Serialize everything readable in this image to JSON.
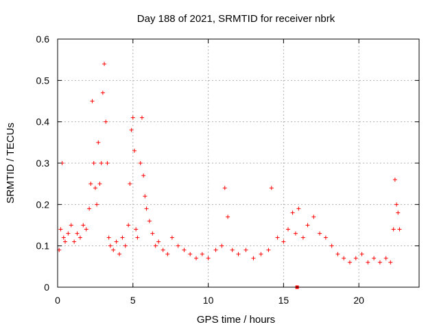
{
  "chart_data": {
    "type": "scatter",
    "title": "Day 188 of 2021, SRMTID for receiver nbrk",
    "xlabel": "GPS time / hours",
    "ylabel": "SRMTID / TECUs",
    "xlim": [
      0,
      24
    ],
    "ylim": [
      0,
      0.6
    ],
    "xticks": [
      0,
      5,
      10,
      15,
      20
    ],
    "yticks": [
      0,
      0.1,
      0.2,
      0.3,
      0.4,
      0.5,
      0.6
    ],
    "xtick_labels": [
      "0",
      "5",
      "10",
      "15",
      "20"
    ],
    "ytick_labels": [
      "0",
      "0.1",
      "0.2",
      "0.3",
      "0.4",
      "0.5",
      "0.6"
    ],
    "grid": true,
    "marker": "plus",
    "color": "#ff0000",
    "legend": "none",
    "series": [
      {
        "name": "SRMTID",
        "x": [
          0.1,
          0.2,
          0.3,
          0.4,
          0.5,
          0.7,
          0.9,
          1.1,
          1.3,
          1.5,
          1.7,
          1.9,
          2.1,
          2.2,
          2.3,
          2.4,
          2.5,
          2.6,
          2.7,
          2.8,
          2.9,
          3.0,
          3.1,
          3.2,
          3.3,
          3.4,
          3.5,
          3.7,
          3.9,
          4.1,
          4.3,
          4.5,
          4.7,
          4.8,
          4.9,
          5.0,
          5.1,
          5.2,
          5.3,
          5.5,
          5.6,
          5.7,
          5.8,
          5.9,
          6.1,
          6.3,
          6.5,
          6.7,
          7.0,
          7.3,
          7.6,
          8.0,
          8.4,
          8.8,
          9.2,
          9.6,
          10.0,
          10.5,
          10.9,
          11.1,
          11.3,
          11.6,
          12.0,
          12.5,
          13.0,
          13.5,
          14.0,
          14.2,
          14.6,
          15.0,
          15.3,
          15.6,
          15.8,
          16.0,
          16.3,
          16.6,
          17.0,
          17.4,
          17.8,
          18.2,
          18.6,
          19.0,
          19.4,
          19.8,
          20.2,
          20.6,
          21.0,
          21.4,
          21.8,
          22.1,
          22.3,
          22.4,
          22.5,
          22.6,
          22.7
        ],
        "y": [
          0.09,
          0.14,
          0.3,
          0.12,
          0.11,
          0.13,
          0.15,
          0.11,
          0.13,
          0.12,
          0.15,
          0.14,
          0.19,
          0.25,
          0.45,
          0.3,
          0.24,
          0.2,
          0.35,
          0.25,
          0.3,
          0.47,
          0.54,
          0.4,
          0.3,
          0.12,
          0.1,
          0.09,
          0.11,
          0.08,
          0.12,
          0.1,
          0.15,
          0.25,
          0.38,
          0.41,
          0.33,
          0.14,
          0.12,
          0.3,
          0.41,
          0.27,
          0.22,
          0.19,
          0.16,
          0.13,
          0.1,
          0.11,
          0.09,
          0.08,
          0.12,
          0.1,
          0.09,
          0.08,
          0.07,
          0.08,
          0.07,
          0.09,
          0.1,
          0.24,
          0.17,
          0.09,
          0.08,
          0.09,
          0.07,
          0.08,
          0.09,
          0.24,
          0.12,
          0.11,
          0.14,
          0.18,
          0.13,
          0.19,
          0.12,
          0.15,
          0.17,
          0.13,
          0.12,
          0.1,
          0.08,
          0.07,
          0.06,
          0.07,
          0.08,
          0.06,
          0.07,
          0.06,
          0.07,
          0.06,
          0.14,
          0.26,
          0.2,
          0.18,
          0.14
        ],
        "highlighted_point": {
          "x": 15.9,
          "y": 0.0
        }
      }
    ]
  }
}
